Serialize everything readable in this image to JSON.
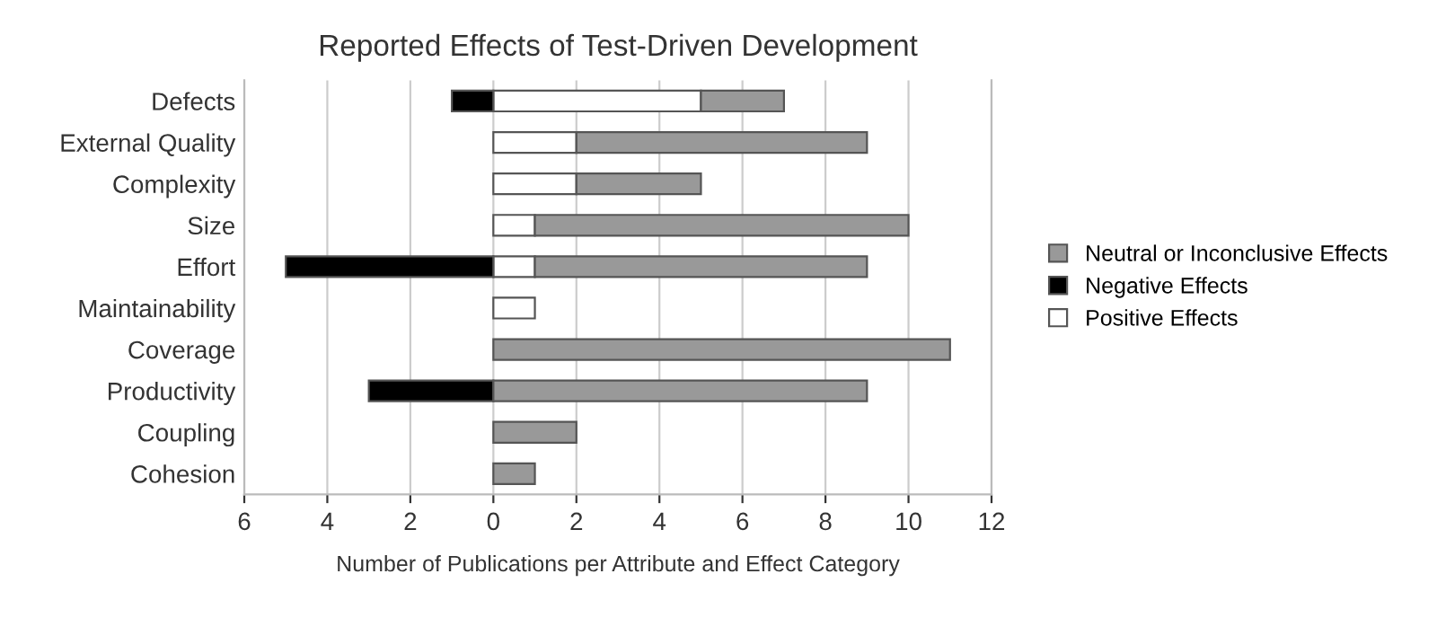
{
  "chart_data": {
    "type": "bar",
    "orientation": "horizontal",
    "stacked": true,
    "title": "Reported Effects of Test-Driven Development",
    "xlabel": "Number of Publications per Attribute and Effect Category",
    "categories": [
      "Defects",
      "External Quality",
      "Complexity",
      "Size",
      "Effort",
      "Maintainability",
      "Coverage",
      "Productivity",
      "Coupling",
      "Cohesion"
    ],
    "series": [
      {
        "name": "Positive Effects",
        "color": "#ffffff",
        "values": [
          5,
          2,
          2,
          1,
          1,
          1,
          null,
          null,
          null,
          null
        ]
      },
      {
        "name": "Negative Effects",
        "color": "#000000",
        "values": [
          -1,
          null,
          null,
          null,
          -5,
          null,
          null,
          -3,
          null,
          null
        ]
      },
      {
        "name": "Neutral or Inconclusive Effects",
        "color": "#999999",
        "values": [
          2,
          7,
          3,
          9,
          8,
          null,
          11,
          9,
          2,
          1
        ]
      }
    ],
    "xlim": [
      -6,
      12
    ],
    "xticks": [
      {
        "value": -6,
        "label": "6"
      },
      {
        "value": -4,
        "label": "4"
      },
      {
        "value": -2,
        "label": "2"
      },
      0,
      2,
      4,
      6,
      8,
      10,
      12
    ],
    "grid": "x",
    "legend": "right"
  }
}
